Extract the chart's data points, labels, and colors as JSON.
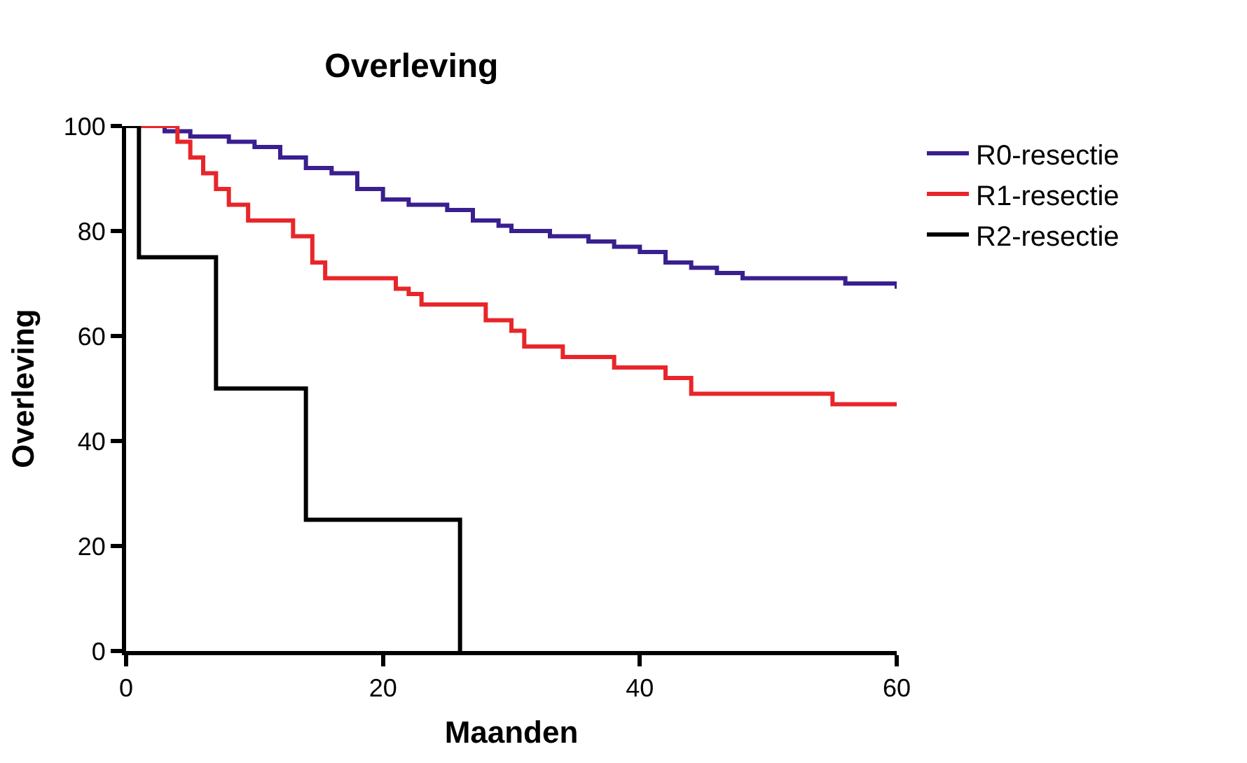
{
  "chart_data": {
    "type": "step",
    "title": "Overleving",
    "xlabel": "Maanden",
    "ylabel": "Overleving",
    "xlim": [
      0,
      60
    ],
    "xticks": [
      0,
      20,
      40,
      60
    ],
    "ylim": [
      0,
      100
    ],
    "yticks": [
      0,
      20,
      40,
      60,
      80,
      100
    ],
    "legend": "top right",
    "marker": "none",
    "line_style": "solid",
    "series": [
      {
        "name": "R0-resectie",
        "color": "#3a1f8f",
        "x": [
          0,
          3,
          5,
          8,
          10,
          12,
          14,
          16,
          18,
          20,
          22,
          25,
          27,
          29,
          30,
          33,
          36,
          38,
          40,
          42,
          44,
          46,
          48,
          50,
          56,
          60
        ],
        "values": [
          100,
          99,
          98,
          97,
          96,
          94,
          92,
          91,
          88,
          86,
          85,
          84,
          82,
          81,
          80,
          79,
          78,
          77,
          76,
          74,
          73,
          72,
          71,
          71,
          70,
          69
        ]
      },
      {
        "name": "R1-resectie",
        "color": "#e8262a",
        "x": [
          0,
          4,
          5,
          6,
          7,
          8,
          9.5,
          10,
          13,
          14.5,
          15.5,
          21,
          22,
          23,
          28,
          30,
          31,
          34,
          38,
          42,
          44,
          55,
          60
        ],
        "values": [
          100,
          97,
          94,
          91,
          88,
          85,
          82,
          82,
          79,
          74,
          71,
          69,
          68,
          66,
          63,
          61,
          58,
          56,
          54,
          52,
          49,
          47,
          47
        ]
      },
      {
        "name": "R2-resectie",
        "color": "#000000",
        "x": [
          0,
          1,
          7,
          14,
          26
        ],
        "values": [
          100,
          75,
          50,
          25,
          0
        ]
      }
    ]
  }
}
